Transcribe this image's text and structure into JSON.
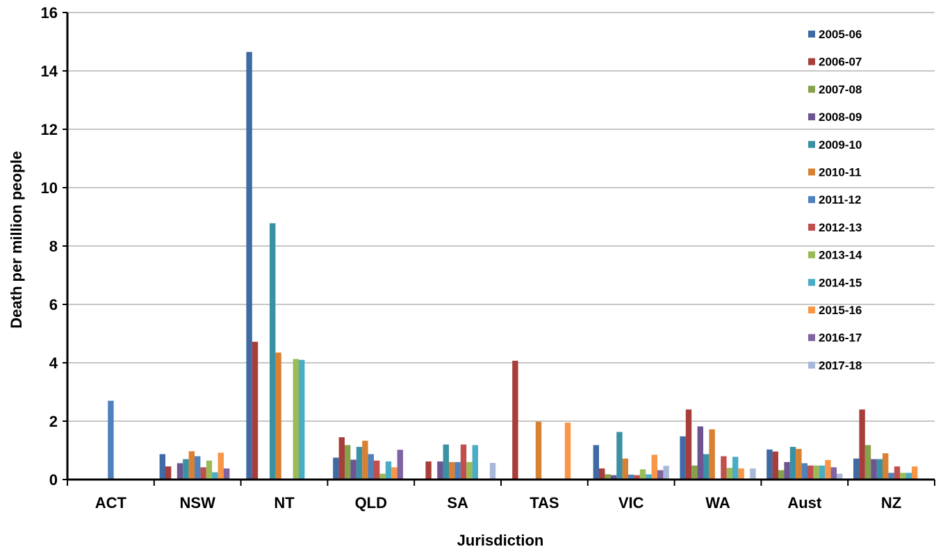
{
  "chart_data": {
    "type": "bar",
    "title": "",
    "xlabel": "Jurisdiction",
    "ylabel": "Death per million people",
    "ylim": [
      0,
      16
    ],
    "yticks": [
      0,
      2,
      4,
      6,
      8,
      10,
      12,
      14,
      16
    ],
    "grid": "horizontal",
    "legend_position": "right",
    "categories": [
      "ACT",
      "NSW",
      "NT",
      "QLD",
      "SA",
      "TAS",
      "VIC",
      "WA",
      "Aust",
      "NZ"
    ],
    "series": [
      {
        "name": "2005-06",
        "color": "#3F6AA4",
        "values": [
          0,
          0.87,
          14.65,
          0.75,
          0,
          0,
          1.18,
          1.48,
          1.03,
          0.72
        ]
      },
      {
        "name": "2006-07",
        "color": "#A73E3B",
        "values": [
          0,
          0.45,
          4.72,
          1.45,
          0.62,
          4.07,
          0.38,
          2.4,
          0.96,
          2.4
        ]
      },
      {
        "name": "2007-08",
        "color": "#86A14B",
        "values": [
          0,
          0,
          0,
          1.18,
          0,
          0,
          0.18,
          0.48,
          0.32,
          1.18
        ]
      },
      {
        "name": "2008-09",
        "color": "#6C5590",
        "values": [
          0,
          0.56,
          0,
          0.68,
          0.62,
          0,
          0.15,
          1.82,
          0.6,
          0.7
        ]
      },
      {
        "name": "2009-10",
        "color": "#3A91A3",
        "values": [
          0,
          0.7,
          8.78,
          1.12,
          1.2,
          0,
          1.63,
          0.87,
          1.12,
          0.7
        ]
      },
      {
        "name": "2010-11",
        "color": "#D98132",
        "values": [
          0,
          0.97,
          4.35,
          1.33,
          0.6,
          1.98,
          0.72,
          1.72,
          1.05,
          0.9
        ]
      },
      {
        "name": "2011-12",
        "color": "#4F81BD",
        "values": [
          2.7,
          0.8,
          0,
          0.87,
          0.6,
          0,
          0.17,
          0,
          0.56,
          0.23
        ]
      },
      {
        "name": "2012-13",
        "color": "#C0504D",
        "values": [
          0,
          0.42,
          0,
          0.65,
          1.2,
          0,
          0.15,
          0.8,
          0.48,
          0.45
        ]
      },
      {
        "name": "2013-14",
        "color": "#9BBB59",
        "values": [
          0,
          0.65,
          4.13,
          0.2,
          0.6,
          0,
          0.35,
          0.4,
          0.48,
          0.23
        ]
      },
      {
        "name": "2014-15",
        "color": "#4BACC6",
        "values": [
          0,
          0.25,
          4.1,
          0.62,
          1.18,
          0,
          0.18,
          0.78,
          0.48,
          0.23
        ]
      },
      {
        "name": "2015-16",
        "color": "#F79646",
        "values": [
          0,
          0.92,
          0,
          0.42,
          0,
          1.95,
          0.85,
          0.38,
          0.67,
          0.45
        ]
      },
      {
        "name": "2016-17",
        "color": "#8064A2",
        "values": [
          0,
          0.38,
          0,
          1.02,
          0,
          0,
          0.32,
          0,
          0.42,
          0
        ]
      },
      {
        "name": "2017-18",
        "color": "#A9B8D9",
        "values": [
          0,
          0,
          0,
          0,
          0.57,
          0,
          0.47,
          0.38,
          0.2,
          0
        ]
      }
    ]
  }
}
